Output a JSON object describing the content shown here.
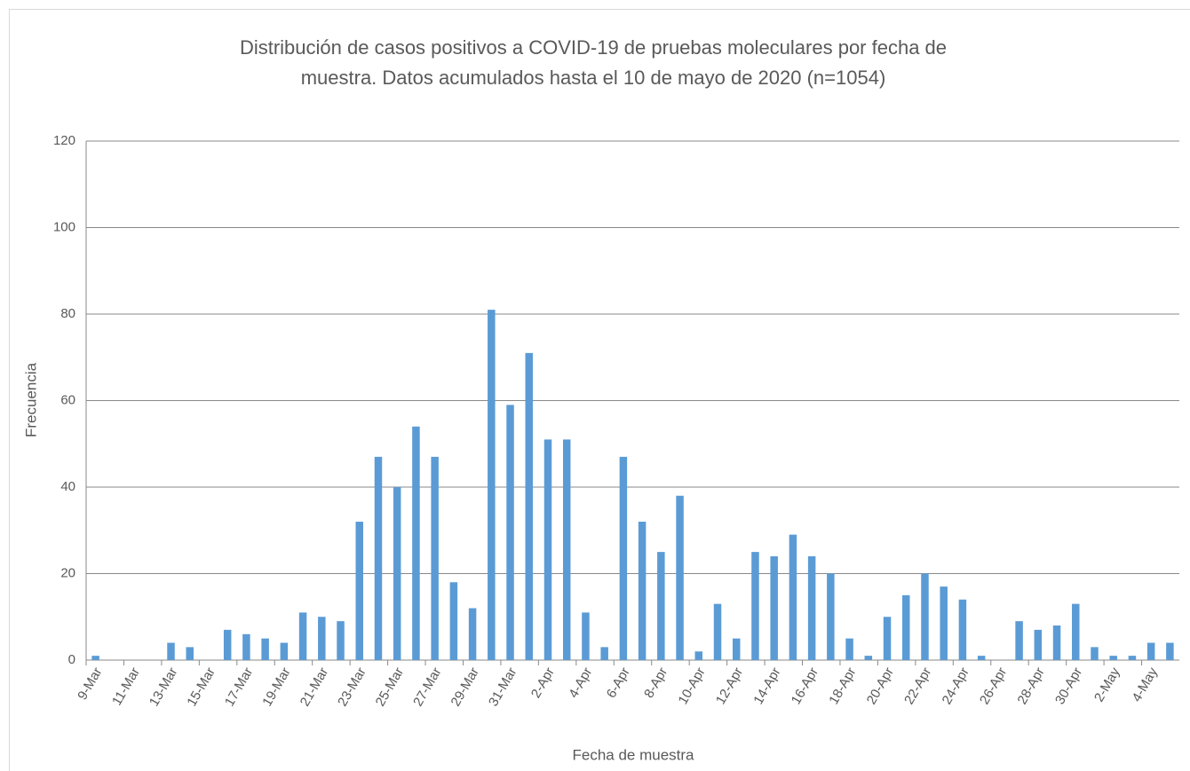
{
  "chart_data": {
    "type": "bar",
    "title": [
      "Distribución de casos positivos a COVID-19 de pruebas moleculares por fecha de",
      "muestra. Datos acumulados hasta el 10 de mayo de 2020 (n=1054)"
    ],
    "x_label": "Fecha de muestra",
    "y_label": "Frecuencia",
    "categories": [
      "9-Mar",
      null,
      "11-Mar",
      null,
      "13-Mar",
      null,
      "15-Mar",
      null,
      "17-Mar",
      null,
      "19-Mar",
      null,
      "21-Mar",
      null,
      "23-Mar",
      null,
      "25-Mar",
      null,
      "27-Mar",
      null,
      "29-Mar",
      null,
      "31-Mar",
      null,
      "2-Apr",
      null,
      "4-Apr",
      null,
      "6-Apr",
      null,
      "8-Apr",
      null,
      "10-Apr",
      null,
      "12-Apr",
      null,
      "14-Apr",
      null,
      "16-Apr",
      null,
      "18-Apr",
      null,
      "20-Apr",
      null,
      "22-Apr",
      null,
      "24-Apr",
      null,
      "26-Apr",
      null,
      "28-Apr",
      null,
      "30-Apr",
      null,
      "2-May",
      null,
      "4-May",
      null
    ],
    "values": [
      1,
      0,
      0,
      0,
      4,
      3,
      0,
      7,
      6,
      5,
      4,
      11,
      10,
      9,
      32,
      47,
      40,
      54,
      47,
      18,
      12,
      81,
      59,
      71,
      51,
      51,
      11,
      3,
      47,
      32,
      25,
      38,
      2,
      13,
      5,
      25,
      24,
      29,
      24,
      20,
      5,
      1,
      10,
      15,
      20,
      17,
      14,
      1,
      0,
      9,
      7,
      8,
      13,
      3,
      1,
      1,
      4,
      4
    ],
    "color": "#5b9bd5",
    "ylim": [
      0,
      120
    ],
    "yticks": [
      0,
      20,
      40,
      60,
      80,
      100,
      120
    ],
    "grid": true
  }
}
